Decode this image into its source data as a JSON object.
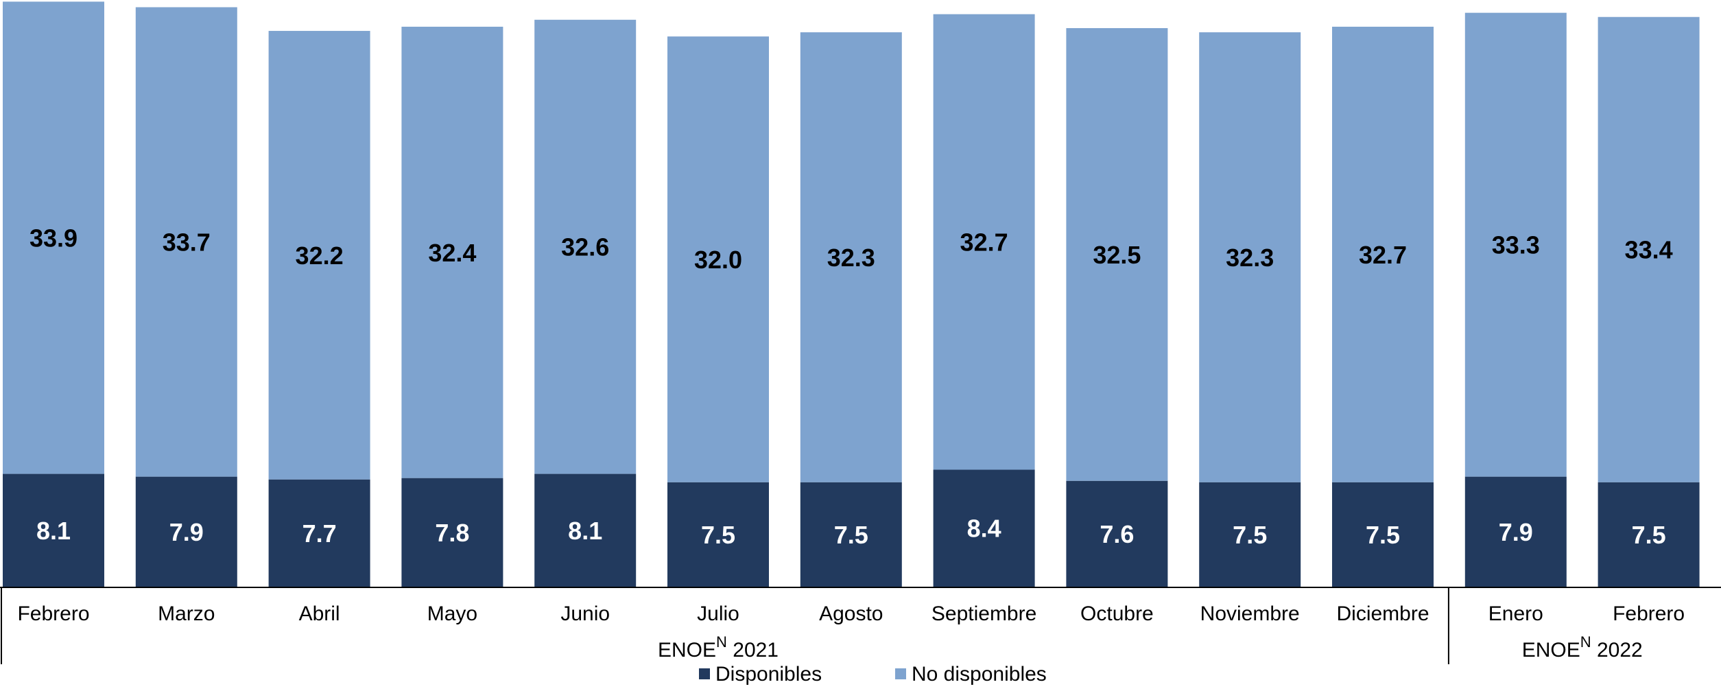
{
  "chart_data": {
    "type": "bar",
    "stacked": true,
    "categories": [
      "Febrero",
      "Marzo",
      "Abril",
      "Mayo",
      "Junio",
      "Julio",
      "Agosto",
      "Septiembre",
      "Octubre",
      "Noviembre",
      "Diciembre",
      "Enero",
      "Febrero"
    ],
    "groups": [
      {
        "label": "ENOE",
        "superscript": "N",
        "year": "2021",
        "start": 0,
        "end": 10
      },
      {
        "label": "ENOE",
        "superscript": "N",
        "year": "2022",
        "start": 11,
        "end": 12
      }
    ],
    "series": [
      {
        "name": "Disponibles",
        "color": "#223a5e",
        "label_color": "#ffffff",
        "values": [
          8.1,
          7.9,
          7.7,
          7.8,
          8.1,
          7.5,
          7.5,
          8.4,
          7.6,
          7.5,
          7.5,
          7.9,
          7.5
        ]
      },
      {
        "name": "No disponibles",
        "color": "#7ea3cf",
        "label_color": "#000000",
        "values": [
          33.9,
          33.7,
          32.2,
          32.4,
          32.6,
          32.0,
          32.3,
          32.7,
          32.5,
          32.3,
          32.7,
          33.3,
          33.4
        ]
      }
    ],
    "ylim": [
      0,
      42
    ],
    "grid": false,
    "legend_position": "bottom"
  }
}
